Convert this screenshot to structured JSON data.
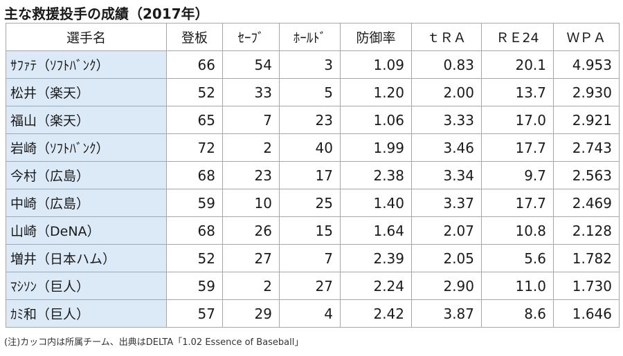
{
  "title": "主な救援投手の成績（2017年）",
  "columns": [
    "選手名",
    "登板",
    "ｾｰﾌﾞ",
    "ﾎｰﾙﾄﾞ",
    "防御率",
    "ｔＲＡ",
    "ＲＥ24",
    "ＷＰＡ"
  ],
  "rows": [
    [
      "ｻﾌｧﾃ（ｿﾌﾄﾊﾞﾝｸ）",
      "66",
      "54",
      "3",
      "1.09",
      "0.83",
      "20.1",
      "4.953"
    ],
    [
      "松井（楽天）",
      "52",
      "33",
      "5",
      "1.20",
      "2.00",
      "13.7",
      "2.930"
    ],
    [
      "福山（楽天）",
      "65",
      "7",
      "23",
      "1.06",
      "3.33",
      "17.0",
      "2.921"
    ],
    [
      "岩崎（ｿﾌﾄﾊﾞﾝｸ）",
      "72",
      "2",
      "40",
      "1.99",
      "3.46",
      "17.7",
      "2.743"
    ],
    [
      "今村（広島）",
      "68",
      "23",
      "17",
      "2.38",
      "3.34",
      "9.7",
      "2.563"
    ],
    [
      "中崎（広島）",
      "59",
      "10",
      "25",
      "1.40",
      "3.37",
      "17.7",
      "2.469"
    ],
    [
      "山崎（DeNA）",
      "68",
      "26",
      "15",
      "1.64",
      "2.07",
      "10.8",
      "2.128"
    ],
    [
      "増井（日本ハム）",
      "52",
      "27",
      "7",
      "2.39",
      "2.05",
      "5.6",
      "1.782"
    ],
    [
      "ﾏｼｿﾝ（巨人）",
      "59",
      "2",
      "27",
      "2.24",
      "2.90",
      "11.0",
      "1.730"
    ],
    [
      "ｶﾐ和（巨人）",
      "57",
      "29",
      "4",
      "2.42",
      "3.87",
      "8.6",
      "1.646"
    ]
  ],
  "footnote": "(注)カッコ内は所属チーム、出典はDELTA「1.02 Essence of Baseball」",
  "colors": {
    "name_cell_bg": "#dce9f7",
    "border": "#a6a6a6"
  }
}
